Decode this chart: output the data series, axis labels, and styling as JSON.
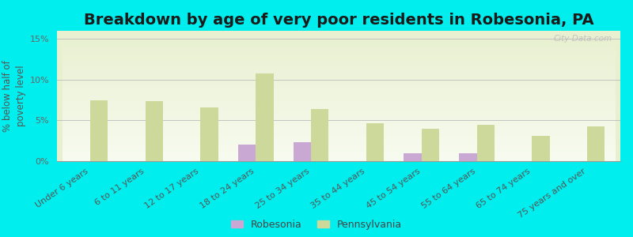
{
  "title": "Breakdown by age of very poor residents in Robesonia, PA",
  "ylabel": "% below half of\npoverty level",
  "categories": [
    "Under 6 years",
    "6 to 11 years",
    "12 to 17 years",
    "18 to 24 years",
    "25 to 34 years",
    "35 to 44 years",
    "45 to 54 years",
    "55 to 64 years",
    "65 to 74 years",
    "75 years and over"
  ],
  "robesonia": [
    0,
    0,
    0,
    2.0,
    2.3,
    0,
    1.0,
    1.0,
    0,
    0
  ],
  "pennsylvania": [
    7.5,
    7.4,
    6.6,
    10.8,
    6.4,
    4.7,
    4.0,
    4.5,
    3.1,
    4.3
  ],
  "robesonia_color": "#c9a8d4",
  "pennsylvania_color": "#cdd99a",
  "background_color": "#00eeee",
  "plot_bg_top": "#e8f0d0",
  "plot_bg_bottom": "#f8fbf0",
  "ylim": [
    0,
    16
  ],
  "yticks": [
    0,
    5,
    10,
    15
  ],
  "ytick_labels": [
    "0%",
    "5%",
    "10%",
    "15%"
  ],
  "title_fontsize": 14,
  "axis_label_fontsize": 8.5,
  "tick_fontsize": 8,
  "bar_width": 0.32,
  "watermark": "City-Data.com",
  "legend_labels": [
    "Robesonia",
    "Pennsylvania"
  ]
}
